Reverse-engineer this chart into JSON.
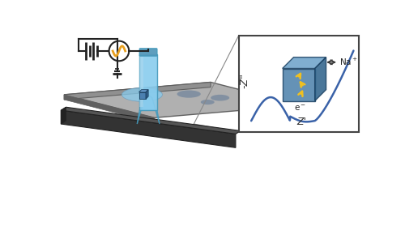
{
  "bg_color": "#ffffff",
  "platform_color": "#909090",
  "platform_top": "#b0b0b0",
  "platform_dark": "#606060",
  "beam_top": "#555555",
  "beam_front": "#333333",
  "beam_side": "#222222",
  "pipette_fill": "#88ccee",
  "pipette_light": "#bbddee",
  "pipette_dark": "#4499bb",
  "pipette_cap_fill": "#5599bb",
  "glow_color": "#88ccee",
  "nanoparticle_front": "#4477aa",
  "nanoparticle_top": "#6699cc",
  "nanoparticle_right": "#2a5580",
  "cube_edge": "#1a3f60",
  "electrode_color": "#222222",
  "ground_color": "#222222",
  "ac_color": "#e8a020",
  "line_color": "#3a62a8",
  "inset_bg": "#ffffff",
  "inset_border": "#444444",
  "z_label_color": "#333333",
  "spot_color": "#4a6a90",
  "spot_alpha": 0.45,
  "platform_disk_color": "#909090",
  "platform_disk_alpha": 0.55,
  "arrow_color": "#f0c020",
  "connector_color": "#888888",
  "big_cube_front": "#4a7faa",
  "big_cube_top": "#6aa0c8",
  "big_cube_right": "#2a5f88"
}
